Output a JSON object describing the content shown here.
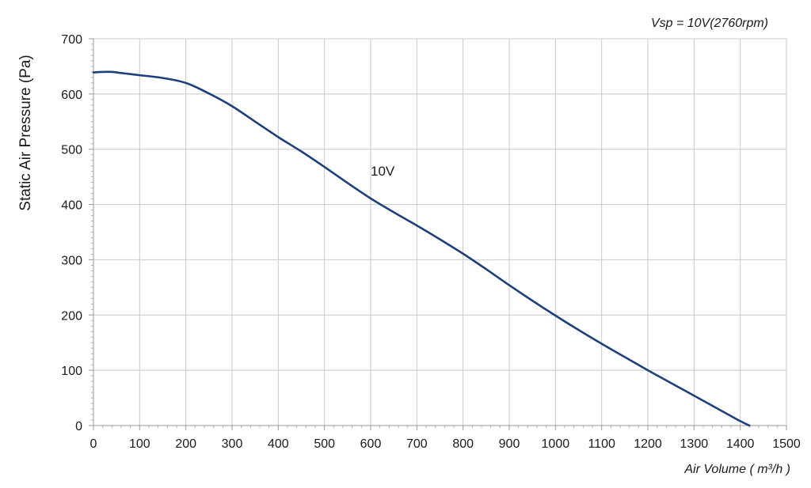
{
  "chart_data": {
    "type": "line",
    "title": "",
    "subtitle": "Vsp = 10V(2760rpm)",
    "xlabel": "Air Volume ( m³/h )",
    "ylabel": "Static Air Pressure  (Pa)",
    "xlim": [
      0,
      1500
    ],
    "ylim": [
      0,
      700
    ],
    "x_ticks": [
      0,
      100,
      200,
      300,
      400,
      500,
      600,
      700,
      800,
      900,
      1000,
      1100,
      1200,
      1300,
      1400,
      1500
    ],
    "y_ticks": [
      0,
      100,
      200,
      300,
      400,
      500,
      600,
      700
    ],
    "grid": true,
    "legend": "none",
    "series": [
      {
        "name": "10V",
        "color": "#1f3f7a",
        "x": [
          0,
          20,
          40,
          60,
          80,
          100,
          150,
          200,
          250,
          300,
          350,
          400,
          450,
          500,
          550,
          600,
          650,
          700,
          750,
          800,
          850,
          900,
          950,
          1000,
          1050,
          1100,
          1150,
          1200,
          1250,
          1300,
          1350,
          1400,
          1420
        ],
        "y": [
          639,
          640,
          640,
          638,
          636,
          634,
          629,
          620,
          601,
          578,
          550,
          522,
          496,
          468,
          439,
          411,
          386,
          362,
          337,
          311,
          283,
          254,
          226,
          199,
          173,
          148,
          124,
          100,
          77,
          54,
          31,
          8,
          0
        ]
      }
    ],
    "annotations": [
      {
        "text": "10V",
        "x": 600,
        "y": 452
      }
    ]
  }
}
